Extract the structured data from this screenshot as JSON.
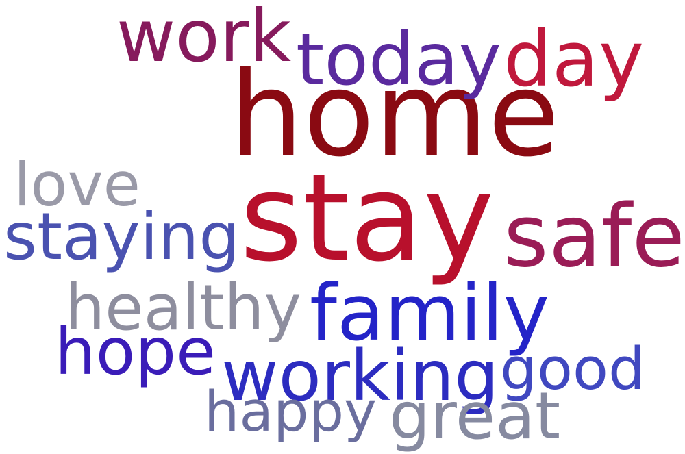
{
  "words": [
    {
      "text": "home",
      "color": "#8a0a12"
    },
    {
      "text": "stay",
      "color": "#b8102c"
    },
    {
      "text": "work",
      "color": "#861a5c"
    },
    {
      "text": "today",
      "color": "#5a2a9e"
    },
    {
      "text": "day",
      "color": "#c0183c"
    },
    {
      "text": "love",
      "color": "#9a9aa8"
    },
    {
      "text": "staying",
      "color": "#4a52b0"
    },
    {
      "text": "safe",
      "color": "#9a1c56"
    },
    {
      "text": "healthy",
      "color": "#8e8e9e"
    },
    {
      "text": "family",
      "color": "#2424c8"
    },
    {
      "text": "hope",
      "color": "#3a1cb8"
    },
    {
      "text": "working",
      "color": "#2c2cc0"
    },
    {
      "text": "good",
      "color": "#4048c0"
    },
    {
      "text": "happy",
      "color": "#6a6e9e"
    },
    {
      "text": "great",
      "color": "#868aa0"
    }
  ]
}
